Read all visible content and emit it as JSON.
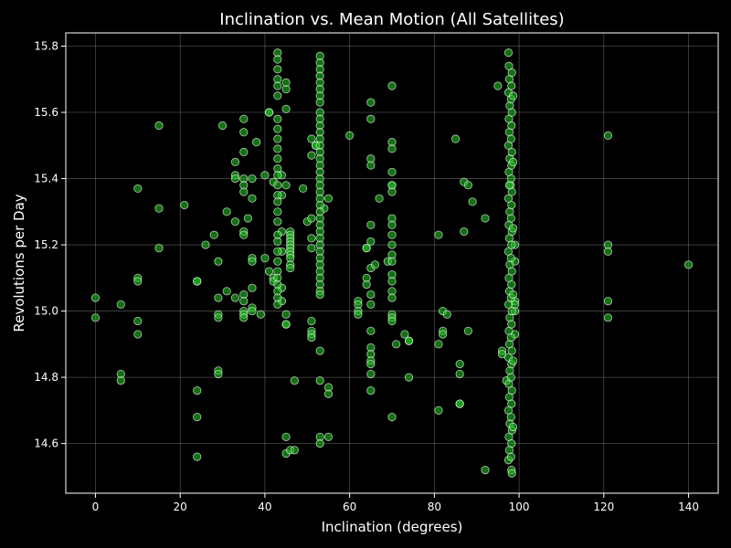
{
  "chart_data": {
    "type": "scatter",
    "title": "Inclination vs. Mean Motion (All Satellites)",
    "xlabel": "Inclination (degrees)",
    "ylabel": "Revolutions per Day",
    "xlim": [
      -7,
      147
    ],
    "ylim": [
      14.45,
      15.84
    ],
    "xticks": [
      0,
      20,
      40,
      60,
      80,
      100,
      120,
      140
    ],
    "yticks": [
      14.6,
      14.8,
      15.0,
      15.2,
      15.4,
      15.6,
      15.8
    ],
    "ytick_labels": [
      "14.6",
      "14.8",
      "15.0",
      "15.2",
      "15.4",
      "15.6",
      "15.8"
    ],
    "grid": true,
    "legend": "none",
    "colors": {
      "background": "#000000",
      "point_fill": "#22bb22",
      "point_edge": "#e0ffe0",
      "text": "#ffffff"
    },
    "points": [
      [
        0,
        15.04
      ],
      [
        0,
        14.98
      ],
      [
        6,
        15.02
      ],
      [
        6,
        14.81
      ],
      [
        6,
        14.79
      ],
      [
        10,
        15.37
      ],
      [
        10,
        15.1
      ],
      [
        10,
        15.09
      ],
      [
        10,
        14.97
      ],
      [
        10,
        14.93
      ],
      [
        15,
        15.56
      ],
      [
        15,
        15.31
      ],
      [
        15,
        15.19
      ],
      [
        21,
        15.32
      ],
      [
        24,
        15.09
      ],
      [
        24,
        15.09
      ],
      [
        24,
        14.76
      ],
      [
        24,
        14.68
      ],
      [
        24,
        14.56
      ],
      [
        26,
        15.2
      ],
      [
        28,
        15.23
      ],
      [
        29,
        15.15
      ],
      [
        29,
        15.04
      ],
      [
        29,
        14.99
      ],
      [
        29,
        14.98
      ],
      [
        29,
        14.82
      ],
      [
        29,
        14.81
      ],
      [
        30,
        15.56
      ],
      [
        31,
        15.3
      ],
      [
        31,
        15.06
      ],
      [
        33,
        15.45
      ],
      [
        33,
        15.41
      ],
      [
        33,
        15.4
      ],
      [
        33,
        15.27
      ],
      [
        33,
        15.04
      ],
      [
        35,
        15.58
      ],
      [
        35,
        15.54
      ],
      [
        35,
        15.48
      ],
      [
        35,
        15.4
      ],
      [
        35,
        15.38
      ],
      [
        35,
        15.36
      ],
      [
        35,
        15.24
      ],
      [
        35,
        15.23
      ],
      [
        35,
        15.05
      ],
      [
        35,
        15.03
      ],
      [
        35,
        15.0
      ],
      [
        35,
        14.99
      ],
      [
        35,
        14.98
      ],
      [
        36,
        15.28
      ],
      [
        37,
        15.34
      ],
      [
        37,
        15.16
      ],
      [
        37,
        15.15
      ],
      [
        37,
        15.07
      ],
      [
        37,
        15.01
      ],
      [
        37,
        15.0
      ],
      [
        37,
        15.4
      ],
      [
        38,
        15.51
      ],
      [
        39,
        14.99
      ],
      [
        40,
        15.41
      ],
      [
        40,
        15.16
      ],
      [
        41,
        15.12
      ],
      [
        41,
        15.6
      ],
      [
        41,
        15.6
      ],
      [
        42,
        15.39
      ],
      [
        42,
        15.1
      ],
      [
        42,
        15.09
      ],
      [
        44,
        15.41
      ],
      [
        44,
        15.35
      ],
      [
        44,
        15.24
      ],
      [
        44,
        15.18
      ],
      [
        44,
        15.07
      ],
      [
        44,
        15.03
      ],
      [
        45,
        15.67
      ],
      [
        45,
        15.61
      ],
      [
        45,
        15.38
      ],
      [
        45,
        14.99
      ],
      [
        45,
        14.96
      ],
      [
        45,
        14.96
      ],
      [
        45,
        14.57
      ],
      [
        45,
        14.62
      ],
      [
        45,
        15.69
      ],
      [
        46,
        14.58
      ],
      [
        47,
        14.58
      ],
      [
        47,
        14.79
      ],
      [
        49,
        15.37
      ],
      [
        50,
        15.27
      ],
      [
        51,
        15.52
      ],
      [
        51,
        15.47
      ],
      [
        51,
        15.28
      ],
      [
        51,
        15.22
      ],
      [
        51,
        15.19
      ],
      [
        51,
        14.97
      ],
      [
        51,
        14.94
      ],
      [
        51,
        14.93
      ],
      [
        51,
        14.92
      ],
      [
        52,
        15.5
      ],
      [
        52,
        15.5
      ],
      [
        53,
        14.88
      ],
      [
        53,
        14.79
      ],
      [
        53,
        14.62
      ],
      [
        53,
        14.6
      ],
      [
        54,
        15.31
      ],
      [
        55,
        15.34
      ],
      [
        55,
        14.77
      ],
      [
        55,
        14.75
      ],
      [
        55,
        14.62
      ],
      [
        60,
        15.53
      ],
      [
        62,
        15.03
      ],
      [
        62,
        15.02
      ],
      [
        62,
        15.0
      ],
      [
        62,
        14.99
      ],
      [
        64,
        15.19
      ],
      [
        64,
        15.19
      ],
      [
        64,
        15.1
      ],
      [
        64,
        15.08
      ],
      [
        65,
        15.63
      ],
      [
        65,
        15.58
      ],
      [
        65,
        15.46
      ],
      [
        65,
        15.44
      ],
      [
        65,
        15.26
      ],
      [
        65,
        15.21
      ],
      [
        65,
        15.13
      ],
      [
        65,
        15.05
      ],
      [
        65,
        15.02
      ],
      [
        65,
        14.94
      ],
      [
        65,
        14.89
      ],
      [
        65,
        14.87
      ],
      [
        65,
        14.85
      ],
      [
        65,
        14.84
      ],
      [
        65,
        14.81
      ],
      [
        65,
        14.76
      ],
      [
        66,
        15.14
      ],
      [
        67,
        15.34
      ],
      [
        69,
        15.15
      ],
      [
        70,
        15.68
      ],
      [
        70,
        15.51
      ],
      [
        70,
        15.49
      ],
      [
        70,
        15.42
      ],
      [
        70,
        15.38
      ],
      [
        70,
        15.38
      ],
      [
        70,
        15.36
      ],
      [
        70,
        15.28
      ],
      [
        70,
        15.26
      ],
      [
        70,
        15.23
      ],
      [
        70,
        15.2
      ],
      [
        70,
        15.17
      ],
      [
        70,
        15.15
      ],
      [
        70,
        15.11
      ],
      [
        70,
        15.09
      ],
      [
        70,
        15.06
      ],
      [
        70,
        15.04
      ],
      [
        70,
        14.99
      ],
      [
        70,
        14.98
      ],
      [
        70,
        14.97
      ],
      [
        70,
        14.68
      ],
      [
        71,
        14.9
      ],
      [
        73,
        14.93
      ],
      [
        74,
        14.91
      ],
      [
        74,
        14.91
      ],
      [
        74,
        14.8
      ],
      [
        81,
        15.23
      ],
      [
        81,
        14.9
      ],
      [
        81,
        14.7
      ],
      [
        82,
        14.94
      ],
      [
        82,
        14.93
      ],
      [
        82,
        15.0
      ],
      [
        83,
        14.99
      ],
      [
        85,
        15.52
      ],
      [
        86,
        14.84
      ],
      [
        86,
        14.81
      ],
      [
        86,
        14.72
      ],
      [
        86,
        14.72
      ],
      [
        87,
        15.39
      ],
      [
        87,
        15.24
      ],
      [
        88,
        14.94
      ],
      [
        88,
        15.38
      ],
      [
        89,
        15.33
      ],
      [
        92,
        15.28
      ],
      [
        92,
        14.52
      ],
      [
        95,
        15.68
      ],
      [
        96,
        14.88
      ],
      [
        96,
        14.87
      ],
      [
        97,
        14.79
      ],
      [
        98,
        15.38
      ],
      [
        99,
        15.0
      ],
      [
        99,
        14.93
      ],
      [
        99,
        15.2
      ],
      [
        99,
        15.15
      ],
      [
        99,
        15.03
      ],
      [
        99,
        15.02
      ],
      [
        121,
        15.53
      ],
      [
        121,
        15.2
      ],
      [
        121,
        15.18
      ],
      [
        121,
        15.03
      ],
      [
        121,
        14.98
      ],
      [
        140,
        15.14
      ],
      [
        43,
        15.78
      ],
      [
        43,
        15.76
      ],
      [
        43,
        15.73
      ],
      [
        43,
        15.7
      ],
      [
        43,
        15.68
      ],
      [
        43,
        15.65
      ],
      [
        43,
        15.58
      ],
      [
        43,
        15.55
      ],
      [
        43,
        15.52
      ],
      [
        43,
        15.49
      ],
      [
        43,
        15.46
      ],
      [
        43,
        15.43
      ],
      [
        43,
        15.41
      ],
      [
        43,
        15.38
      ],
      [
        43,
        15.35
      ],
      [
        43,
        15.33
      ],
      [
        43,
        15.3
      ],
      [
        43,
        15.27
      ],
      [
        43,
        15.23
      ],
      [
        43,
        15.21
      ],
      [
        43,
        15.18
      ],
      [
        43,
        15.15
      ],
      [
        43,
        15.12
      ],
      [
        43,
        15.1
      ],
      [
        43,
        15.08
      ],
      [
        43,
        15.06
      ],
      [
        43,
        15.04
      ],
      [
        43,
        15.02
      ],
      [
        46,
        15.24
      ],
      [
        46,
        15.23
      ],
      [
        46,
        15.22
      ],
      [
        46,
        15.21
      ],
      [
        46,
        15.2
      ],
      [
        46,
        15.19
      ],
      [
        46,
        15.18
      ],
      [
        46,
        15.17
      ],
      [
        46,
        15.16
      ],
      [
        46,
        15.14
      ],
      [
        46,
        15.13
      ],
      [
        53,
        15.77
      ],
      [
        53,
        15.75
      ],
      [
        53,
        15.73
      ],
      [
        53,
        15.71
      ],
      [
        53,
        15.69
      ],
      [
        53,
        15.67
      ],
      [
        53,
        15.65
      ],
      [
        53,
        15.63
      ],
      [
        53,
        15.6
      ],
      [
        53,
        15.58
      ],
      [
        53,
        15.56
      ],
      [
        53,
        15.54
      ],
      [
        53,
        15.52
      ],
      [
        53,
        15.5
      ],
      [
        53,
        15.48
      ],
      [
        53,
        15.46
      ],
      [
        53,
        15.44
      ],
      [
        53,
        15.42
      ],
      [
        53,
        15.4
      ],
      [
        53,
        15.38
      ],
      [
        53,
        15.36
      ],
      [
        53,
        15.34
      ],
      [
        53,
        15.32
      ],
      [
        53,
        15.3
      ],
      [
        53,
        15.28
      ],
      [
        53,
        15.26
      ],
      [
        53,
        15.24
      ],
      [
        53,
        15.22
      ],
      [
        53,
        15.2
      ],
      [
        53,
        15.18
      ],
      [
        53,
        15.16
      ],
      [
        53,
        15.14
      ],
      [
        53,
        15.12
      ],
      [
        53,
        15.1
      ],
      [
        53,
        15.08
      ],
      [
        53,
        15.06
      ],
      [
        53,
        15.05
      ],
      [
        97.5,
        15.78
      ],
      [
        97.6,
        15.74
      ],
      [
        97.7,
        15.7
      ],
      [
        97.5,
        15.66
      ],
      [
        97.8,
        15.62
      ],
      [
        97.6,
        15.58
      ],
      [
        97.7,
        15.54
      ],
      [
        97.5,
        15.5
      ],
      [
        97.8,
        15.46
      ],
      [
        97.6,
        15.42
      ],
      [
        97.7,
        15.38
      ],
      [
        97.5,
        15.34
      ],
      [
        97.8,
        15.3
      ],
      [
        97.6,
        15.26
      ],
      [
        97.7,
        15.22
      ],
      [
        97.5,
        15.18
      ],
      [
        97.8,
        15.14
      ],
      [
        97.6,
        15.1
      ],
      [
        97.7,
        15.06
      ],
      [
        97.5,
        15.02
      ],
      [
        97.8,
        14.98
      ],
      [
        97.6,
        14.94
      ],
      [
        97.7,
        14.9
      ],
      [
        97.5,
        14.86
      ],
      [
        97.8,
        14.82
      ],
      [
        97.6,
        14.78
      ],
      [
        97.7,
        14.74
      ],
      [
        97.5,
        14.7
      ],
      [
        97.8,
        14.66
      ],
      [
        97.6,
        14.62
      ],
      [
        97.7,
        14.58
      ],
      [
        97.5,
        14.55
      ],
      [
        98.2,
        14.52
      ],
      [
        98.3,
        14.51
      ],
      [
        98.1,
        14.56
      ],
      [
        98.2,
        14.6
      ],
      [
        98.3,
        14.64
      ],
      [
        98.1,
        14.68
      ],
      [
        98.2,
        14.72
      ],
      [
        98.3,
        14.76
      ],
      [
        98.1,
        14.8
      ],
      [
        98.2,
        14.84
      ],
      [
        98.3,
        14.88
      ],
      [
        98.1,
        14.92
      ],
      [
        98.2,
        14.96
      ],
      [
        98.3,
        15.0
      ],
      [
        98.1,
        15.04
      ],
      [
        98.2,
        15.08
      ],
      [
        98.3,
        15.12
      ],
      [
        98.1,
        15.16
      ],
      [
        98.2,
        15.2
      ],
      [
        98.3,
        15.24
      ],
      [
        98.1,
        15.28
      ],
      [
        98.2,
        15.32
      ],
      [
        98.3,
        15.36
      ],
      [
        98.1,
        15.4
      ],
      [
        98.2,
        15.44
      ],
      [
        98.3,
        15.48
      ],
      [
        98.1,
        15.52
      ],
      [
        98.2,
        15.56
      ],
      [
        98.3,
        15.6
      ],
      [
        98.1,
        15.64
      ],
      [
        98.2,
        15.68
      ],
      [
        98.3,
        15.72
      ],
      [
        98.6,
        15.65
      ],
      [
        98.6,
        15.45
      ],
      [
        98.6,
        15.25
      ],
      [
        98.6,
        15.05
      ],
      [
        98.6,
        14.85
      ],
      [
        98.6,
        14.65
      ]
    ]
  }
}
